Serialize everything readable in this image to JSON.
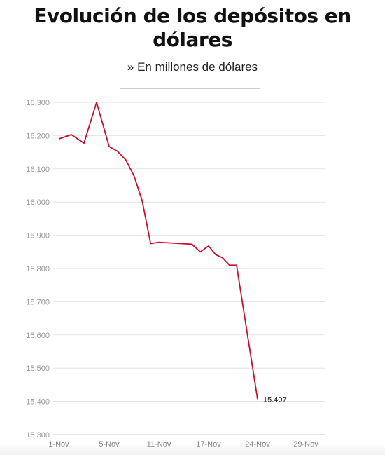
{
  "header": {
    "title": "Evolución de los depósitos en dólares",
    "subtitle": "» En millones de dólares"
  },
  "colors": {
    "line": "#c8102e",
    "grid": "#e3e3e3",
    "axis": "#cccccc"
  },
  "chart_data": {
    "type": "line",
    "title": "Evolución de los depósitos en dólares",
    "subtitle": "» En millones de dólares",
    "x_tick_labels": [
      "1-Nov",
      "5-Nov",
      "11-Nov",
      "17-Nov",
      "24-Nov",
      "29-Nov"
    ],
    "x_ticks_day": [
      1,
      5,
      11,
      17,
      24,
      29
    ],
    "y_ticks": [
      15300,
      15400,
      15500,
      15600,
      15700,
      15800,
      15900,
      16000,
      16100,
      16200,
      16300
    ],
    "y_tick_labels": [
      "15.300",
      "15.400",
      "15.500",
      "15.600",
      "15.700",
      "15.800",
      "15.900",
      "16.000",
      "16.100",
      "16.200",
      "16.300"
    ],
    "ylim": [
      15300,
      16300
    ],
    "grid": true,
    "series": [
      {
        "points": [
          {
            "day": 1,
            "value": 16190
          },
          {
            "day": 2,
            "value": 16203
          },
          {
            "day": 3,
            "value": 16177
          },
          {
            "day": 4,
            "value": 16300
          },
          {
            "day": 5,
            "value": 16167
          },
          {
            "day": 6,
            "value": 16153
          },
          {
            "day": 7,
            "value": 16127
          },
          {
            "day": 8,
            "value": 16079
          },
          {
            "day": 9,
            "value": 16003
          },
          {
            "day": 10,
            "value": 15875
          },
          {
            "day": 11,
            "value": 15879
          },
          {
            "day": 15,
            "value": 15873
          },
          {
            "day": 16,
            "value": 15850
          },
          {
            "day": 17,
            "value": 15868
          },
          {
            "day": 18,
            "value": 15842
          },
          {
            "day": 19,
            "value": 15832
          },
          {
            "day": 20,
            "value": 15810
          },
          {
            "day": 21,
            "value": 15810
          },
          {
            "day": 24,
            "value": 15407
          }
        ]
      }
    ],
    "end_label": "15.407"
  }
}
